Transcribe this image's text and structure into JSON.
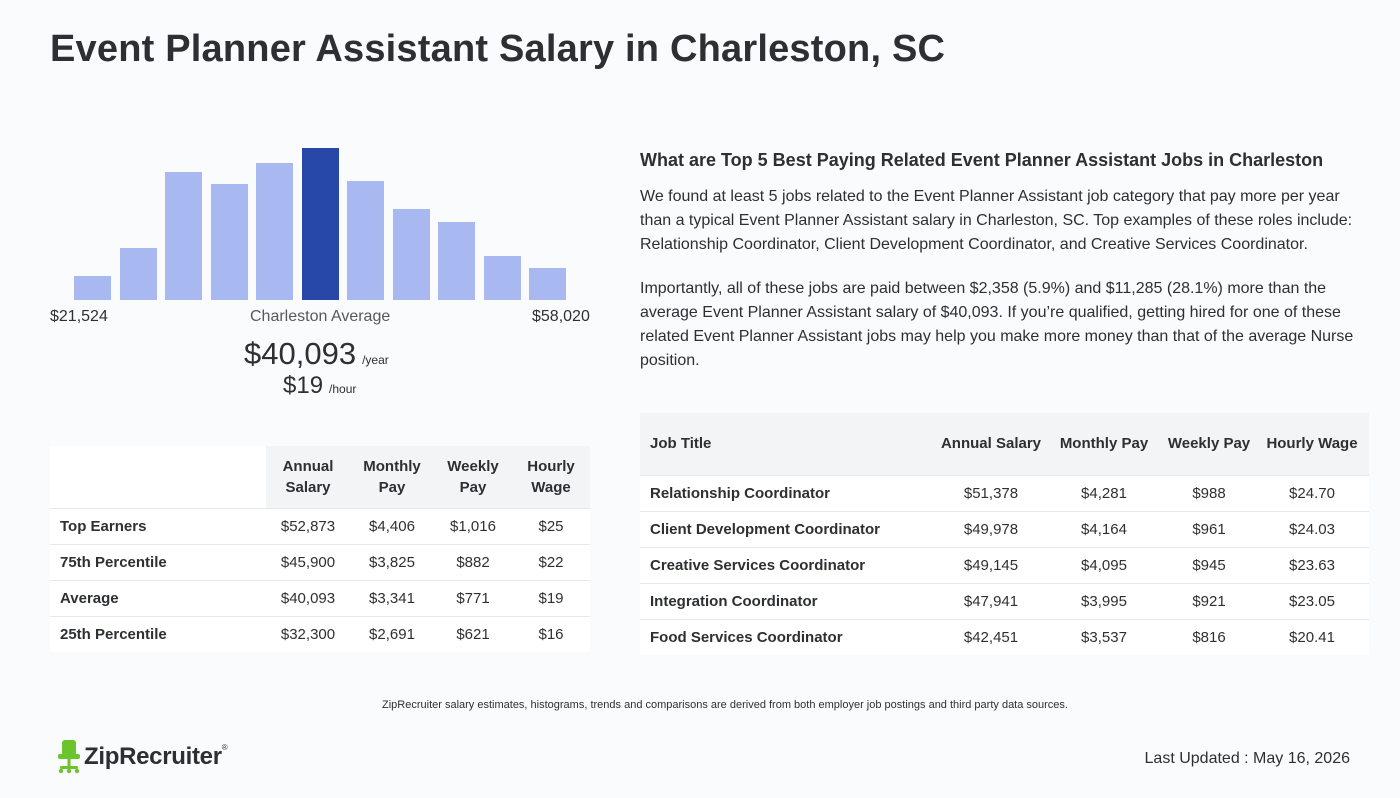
{
  "page": {
    "title": "Event Planner Assistant Salary in Charleston, SC"
  },
  "histogram": {
    "min_label": "$21,524",
    "max_label": "$58,020",
    "avg_label": "Charleston Average",
    "annual_value": "$40,093",
    "annual_unit": "/year",
    "hourly_value": "$19",
    "hourly_unit": "/hour",
    "bar_color": "#a8b8f0",
    "highlight_color": "#2748a8",
    "highlight_index": 5,
    "relative_heights": [
      0.16,
      0.34,
      0.84,
      0.76,
      0.9,
      1.0,
      0.78,
      0.6,
      0.51,
      0.29,
      0.21
    ]
  },
  "percentile_table": {
    "headers": [
      "",
      "Annual Salary",
      "Monthly Pay",
      "Weekly Pay",
      "Hourly Wage"
    ],
    "rows": [
      {
        "label": "Top Earners",
        "annual": "$52,873",
        "monthly": "$4,406",
        "weekly": "$1,016",
        "hourly": "$25"
      },
      {
        "label": "75th Percentile",
        "annual": "$45,900",
        "monthly": "$3,825",
        "weekly": "$882",
        "hourly": "$22"
      },
      {
        "label": "Average",
        "annual": "$40,093",
        "monthly": "$3,341",
        "weekly": "$771",
        "hourly": "$19"
      },
      {
        "label": "25th Percentile",
        "annual": "$32,300",
        "monthly": "$2,691",
        "weekly": "$621",
        "hourly": "$16"
      }
    ]
  },
  "related": {
    "heading": "What are Top 5 Best Paying Related Event Planner Assistant Jobs in Charleston",
    "paragraph1": "We found at least 5 jobs related to the Event Planner Assistant job category that pay more per year than a typical Event Planner Assistant salary in Charleston, SC. Top examples of these roles include: Relationship Coordinator, Client Development Coordinator, and Creative Services Coordinator.",
    "paragraph2": "Importantly, all of these jobs are paid between $2,358 (5.9%) and $11,285 (28.1%) more than the average Event Planner Assistant salary of $40,093. If you’re qualified, getting hired for one of these related Event Planner Assistant jobs may help you make more money than that of the average Nurse position.",
    "headers": [
      "Job Title",
      "Annual Salary",
      "Monthly Pay",
      "Weekly Pay",
      "Hourly Wage"
    ],
    "rows": [
      {
        "title": "Relationship Coordinator",
        "annual": "$51,378",
        "monthly": "$4,281",
        "weekly": "$988",
        "hourly": "$24.70"
      },
      {
        "title": "Client Development Coordinator",
        "annual": "$49,978",
        "monthly": "$4,164",
        "weekly": "$961",
        "hourly": "$24.03"
      },
      {
        "title": "Creative Services Coordinator",
        "annual": "$49,145",
        "monthly": "$4,095",
        "weekly": "$945",
        "hourly": "$23.63"
      },
      {
        "title": "Integration Coordinator",
        "annual": "$47,941",
        "monthly": "$3,995",
        "weekly": "$921",
        "hourly": "$23.05"
      },
      {
        "title": "Food Services Coordinator",
        "annual": "$42,451",
        "monthly": "$3,537",
        "weekly": "$816",
        "hourly": "$20.41"
      }
    ]
  },
  "footer": {
    "disclaimer": "ZipRecruiter salary estimates, histograms, trends and comparisons are derived from both employer job postings and third party data sources.",
    "logo_text": "ZipRecruiter",
    "logo_mark": "®",
    "logo_icon": "chair-icon",
    "logo_color": "#6bc42c",
    "last_updated": "Last Updated : May 16, 2026"
  }
}
